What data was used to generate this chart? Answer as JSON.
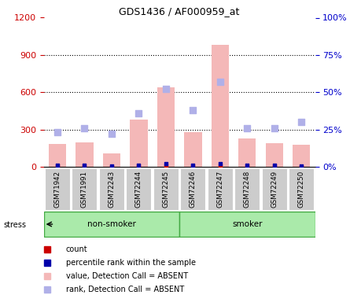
{
  "title": "GDS1436 / AF000959_at",
  "samples": [
    "GSM71942",
    "GSM71991",
    "GSM72243",
    "GSM72244",
    "GSM72245",
    "GSM72246",
    "GSM72247",
    "GSM72248",
    "GSM72249",
    "GSM72250"
  ],
  "bar_values": [
    180,
    195,
    110,
    380,
    640,
    280,
    980,
    230,
    190,
    175
  ],
  "rank_values": [
    23,
    26,
    22,
    36,
    52,
    38,
    57,
    26,
    26,
    30
  ],
  "count_vals_left": [
    2.5,
    3.0,
    2.0,
    4.0,
    6.0,
    3.5,
    7.5,
    2.5,
    2.5,
    2.0
  ],
  "count_vals_right": [
    0.75,
    0.9,
    0.6,
    1.2,
    1.8,
    1.05,
    2.25,
    0.75,
    0.75,
    0.6
  ],
  "ylim_left": [
    0,
    1200
  ],
  "ylim_right": [
    0,
    100
  ],
  "yticks_left": [
    0,
    300,
    600,
    900,
    1200
  ],
  "yticks_right": [
    0,
    25,
    50,
    75,
    100
  ],
  "ytick_labels_right": [
    "0%",
    "25%",
    "50%",
    "75%",
    "100%"
  ],
  "bar_color": "#f4b8b8",
  "rank_color": "#b0b0e8",
  "count_color_red": "#cc0000",
  "count_color_blue": "#0000aa",
  "group_bg": "#aaeaaa",
  "tick_label_bg": "#cccccc",
  "left_axis_color": "#cc0000",
  "right_axis_color": "#0000cc",
  "hline_y": [
    300,
    600,
    900
  ]
}
